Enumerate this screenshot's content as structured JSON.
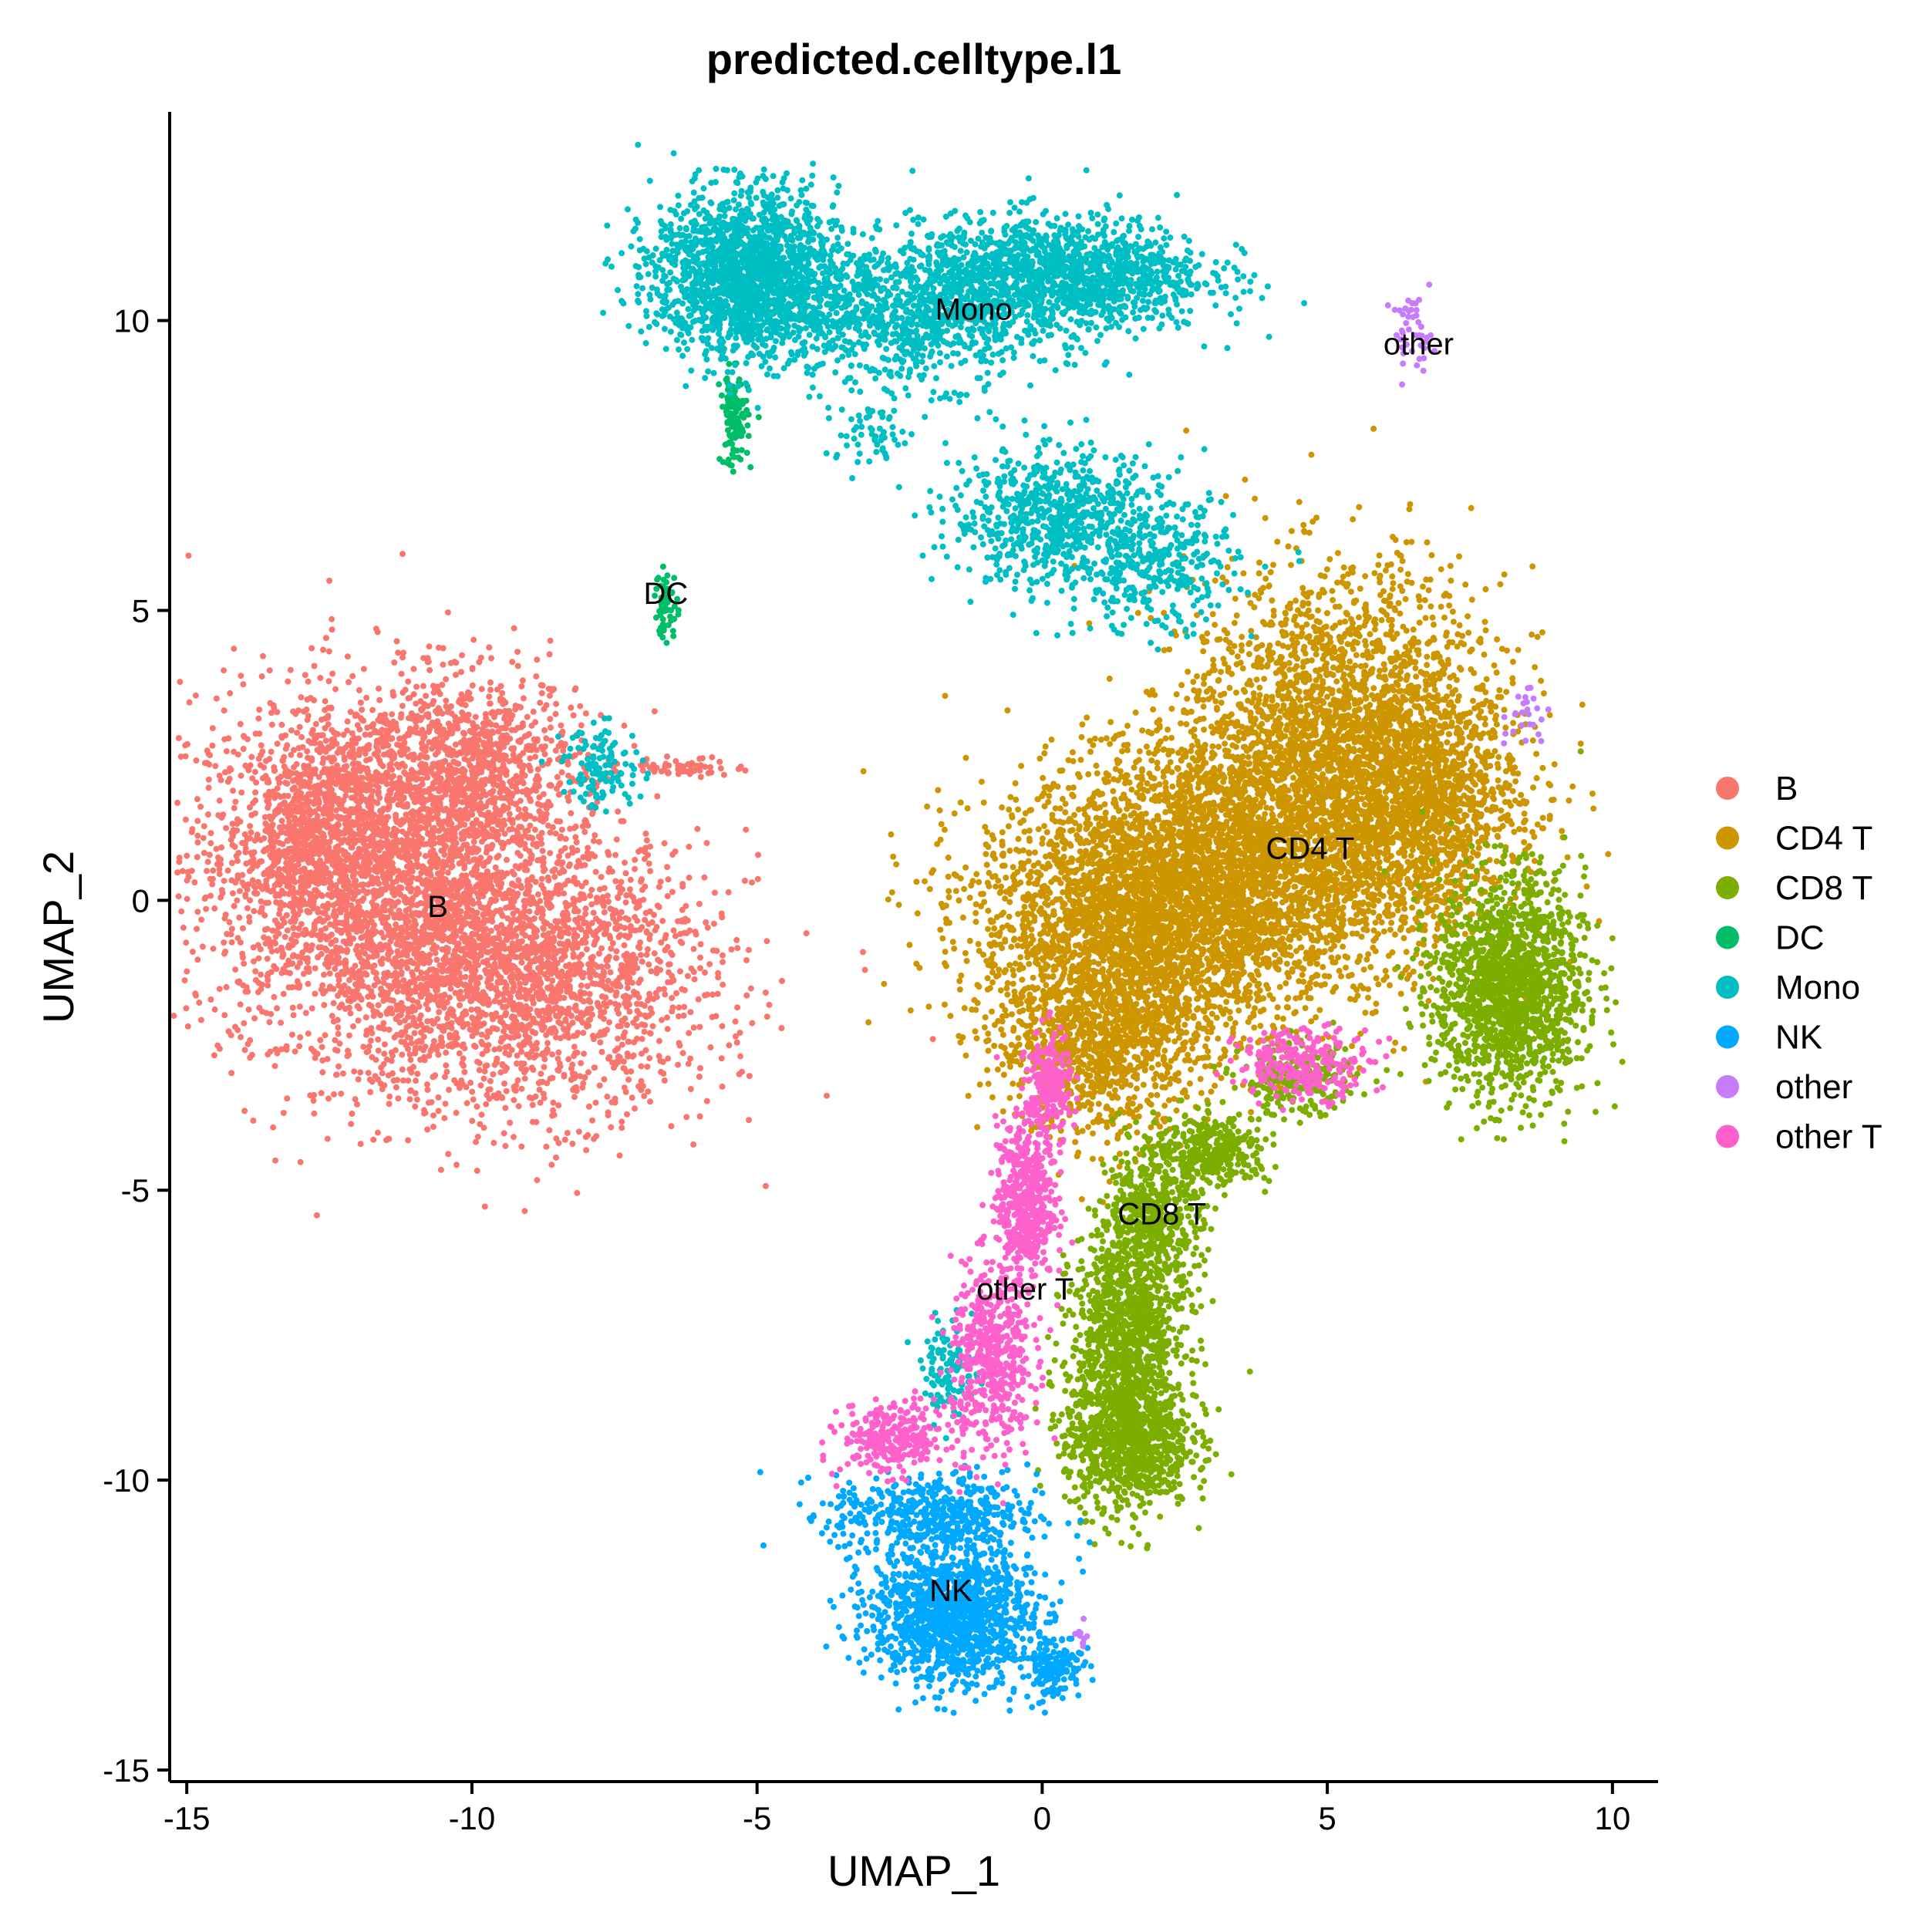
{
  "chart_data": {
    "type": "scatter",
    "title": "predicted.celltype.l1",
    "xlabel": "UMAP_1",
    "ylabel": "UMAP_2",
    "xlim": [
      -15.3,
      10.8
    ],
    "ylim": [
      -15.2,
      13.6
    ],
    "x_ticks": [
      -15,
      -10,
      -5,
      0,
      5,
      10
    ],
    "y_ticks": [
      -15,
      -10,
      -5,
      0,
      5,
      10
    ],
    "x_tick_labels": [
      "-15",
      "-10",
      "-5",
      "0",
      "5",
      "10"
    ],
    "y_tick_labels": [
      "-15",
      "-10",
      "-5",
      "0",
      "5",
      "10"
    ],
    "grid": false,
    "legend_position": "right",
    "legend": [
      {
        "name": "B",
        "color": "#F8766D"
      },
      {
        "name": "CD4 T",
        "color": "#CD9600"
      },
      {
        "name": "CD8 T",
        "color": "#7CAE00"
      },
      {
        "name": "DC",
        "color": "#00BE67"
      },
      {
        "name": "Mono",
        "color": "#00BFC4"
      },
      {
        "name": "NK",
        "color": "#00A9FF"
      },
      {
        "name": "other",
        "color": "#C77CFF"
      },
      {
        "name": "other T",
        "color": "#FF61CC"
      }
    ],
    "cluster_labels": [
      {
        "text": "B",
        "x": -10.6,
        "y": -0.1
      },
      {
        "text": "CD4 T",
        "x": 4.7,
        "y": 0.9
      },
      {
        "text": "CD8 T",
        "x": 2.1,
        "y": -5.4
      },
      {
        "text": "DC",
        "x": -6.6,
        "y": 5.3
      },
      {
        "text": "Mono",
        "x": -1.2,
        "y": 10.2
      },
      {
        "text": "NK",
        "x": -1.6,
        "y": -11.9
      },
      {
        "text": "other",
        "x": 6.6,
        "y": 9.6
      },
      {
        "text": "other T",
        "x": -0.3,
        "y": -6.7
      }
    ],
    "series": [
      {
        "name": "B",
        "color": "#F8766D",
        "clusters": [
          {
            "cx": -11.8,
            "cy": 0.6,
            "sx": 1.6,
            "sy": 1.5,
            "n": 2600
          },
          {
            "cx": -9.2,
            "cy": -1.3,
            "sx": 1.7,
            "sy": 1.2,
            "n": 2400
          },
          {
            "cx": -10.1,
            "cy": 2.3,
            "sx": 1.0,
            "sy": 0.8,
            "n": 900
          },
          {
            "cx": -12.8,
            "cy": 1.2,
            "sx": 0.6,
            "sy": 0.8,
            "n": 500
          },
          {
            "cx": -6.2,
            "cy": 2.3,
            "sx": 0.5,
            "sy": 0.08,
            "n": 60
          }
        ]
      },
      {
        "name": "CD4 T",
        "color": "#CD9600",
        "clusters": [
          {
            "cx": 5.3,
            "cy": 2.4,
            "sx": 1.4,
            "sy": 1.6,
            "n": 3200
          },
          {
            "cx": 1.6,
            "cy": -0.3,
            "sx": 1.4,
            "sy": 1.2,
            "n": 2800
          },
          {
            "cx": 3.4,
            "cy": 0.5,
            "sx": 1.3,
            "sy": 1.2,
            "n": 1800
          },
          {
            "cx": 1.0,
            "cy": -2.5,
            "sx": 0.9,
            "sy": 0.8,
            "n": 900
          },
          {
            "cx": 6.8,
            "cy": 1.5,
            "sx": 0.8,
            "sy": 1.0,
            "n": 800
          }
        ]
      },
      {
        "name": "CD8 T",
        "color": "#7CAE00",
        "clusters": [
          {
            "cx": 8.2,
            "cy": -1.5,
            "sx": 0.65,
            "sy": 0.95,
            "n": 1600
          },
          {
            "cx": 1.5,
            "cy": -9.3,
            "sx": 0.55,
            "sy": 0.6,
            "n": 1000
          },
          {
            "cx": 1.5,
            "cy": -7.4,
            "sx": 0.5,
            "sy": 0.8,
            "n": 900
          },
          {
            "cx": 1.9,
            "cy": -5.5,
            "sx": 0.45,
            "sy": 0.6,
            "n": 500
          },
          {
            "cx": 3.0,
            "cy": -4.3,
            "sx": 0.5,
            "sy": 0.3,
            "n": 350
          },
          {
            "cx": 4.5,
            "cy": -3.1,
            "sx": 0.5,
            "sy": 0.3,
            "n": 250
          }
        ]
      },
      {
        "name": "DC",
        "color": "#00BE67",
        "clusters": [
          {
            "cx": -5.4,
            "cy": 8.3,
            "sx": 0.12,
            "sy": 0.4,
            "n": 120
          },
          {
            "cx": -6.6,
            "cy": 5.1,
            "sx": 0.1,
            "sy": 0.3,
            "n": 60
          }
        ]
      },
      {
        "name": "Mono",
        "color": "#00BFC4",
        "clusters": [
          {
            "cx": -5.2,
            "cy": 10.8,
            "sx": 0.8,
            "sy": 0.7,
            "n": 1800
          },
          {
            "cx": 0.3,
            "cy": 10.8,
            "sx": 1.3,
            "sy": 0.5,
            "n": 1400
          },
          {
            "cx": -2.3,
            "cy": 10.1,
            "sx": 1.2,
            "sy": 0.6,
            "n": 900
          },
          {
            "cx": 0.2,
            "cy": 6.6,
            "sx": 0.9,
            "sy": 0.6,
            "n": 700
          },
          {
            "cx": 2.0,
            "cy": 5.8,
            "sx": 0.7,
            "sy": 0.6,
            "n": 350
          },
          {
            "cx": -7.7,
            "cy": 2.3,
            "sx": 0.35,
            "sy": 0.35,
            "n": 120
          },
          {
            "cx": -1.6,
            "cy": -8.1,
            "sx": 0.25,
            "sy": 0.4,
            "n": 120
          },
          {
            "cx": -3.0,
            "cy": 8.0,
            "sx": 0.4,
            "sy": 0.3,
            "n": 60
          }
        ]
      },
      {
        "name": "NK",
        "color": "#00A9FF",
        "clusters": [
          {
            "cx": -1.6,
            "cy": -12.3,
            "sx": 0.7,
            "sy": 0.6,
            "n": 1300
          },
          {
            "cx": -1.9,
            "cy": -10.6,
            "sx": 0.9,
            "sy": 0.35,
            "n": 500
          },
          {
            "cx": 0.2,
            "cy": -13.2,
            "sx": 0.25,
            "sy": 0.3,
            "n": 150
          }
        ]
      },
      {
        "name": "other",
        "color": "#C77CFF",
        "clusters": [
          {
            "cx": 6.5,
            "cy": 9.8,
            "sx": 0.18,
            "sy": 0.3,
            "n": 45
          },
          {
            "cx": 8.5,
            "cy": 3.2,
            "sx": 0.2,
            "sy": 0.3,
            "n": 25
          },
          {
            "cx": 0.7,
            "cy": -12.7,
            "sx": 0.05,
            "sy": 0.15,
            "n": 10
          }
        ]
      },
      {
        "name": "other T",
        "color": "#FF61CC",
        "clusters": [
          {
            "cx": -0.3,
            "cy": -5.2,
            "sx": 0.25,
            "sy": 0.7,
            "n": 500
          },
          {
            "cx": -0.9,
            "cy": -7.9,
            "sx": 0.35,
            "sy": 0.8,
            "n": 500
          },
          {
            "cx": -2.6,
            "cy": -9.3,
            "sx": 0.45,
            "sy": 0.3,
            "n": 300
          },
          {
            "cx": 0.1,
            "cy": -3.3,
            "sx": 0.2,
            "sy": 0.5,
            "n": 220
          },
          {
            "cx": 4.6,
            "cy": -2.8,
            "sx": 0.6,
            "sy": 0.3,
            "n": 250
          }
        ]
      }
    ]
  }
}
